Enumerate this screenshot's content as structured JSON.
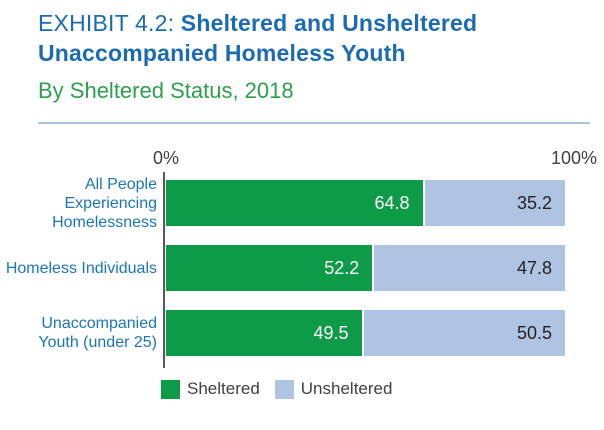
{
  "header": {
    "exhibit": "EXHIBIT 4.2: ",
    "title_line1_bold": "Sheltered and Unsheltered",
    "title_line2_bold": "Unaccompanied Homeless Youth",
    "subtitle": "By Sheltered Status, 2018"
  },
  "axis": {
    "left_label": "0%",
    "right_label": "100%"
  },
  "legend": [
    {
      "label": "Sheltered",
      "color": "#0E9B48"
    },
    {
      "label": "Unsheltered",
      "color": "#AFC3E2"
    }
  ],
  "colors": {
    "title_blue": "#1B6BB4",
    "subtitle_green": "#2CA04D",
    "category_label_blue": "#1C75BC",
    "sheltered_green": "#0E9B48",
    "unsheltered_blue": "#AFC3E2",
    "divider_blue": "#A9C3E0",
    "axis_text": "#414042",
    "value_text_dark": "#231F20",
    "value_text_light": "#FFFFFF"
  },
  "chart_data": {
    "type": "bar",
    "orientation": "horizontal",
    "stacked": true,
    "title": "EXHIBIT 4.2: Sheltered and Unsheltered Unaccompanied Homeless Youth",
    "subtitle": "By Sheltered Status, 2018",
    "categories": [
      "All People Experiencing Homelessness",
      "Homeless Individuals",
      "Unaccompanied Youth (under 25)"
    ],
    "series": [
      {
        "name": "Sheltered",
        "color": "#0E9B48",
        "values": [
          64.8,
          52.2,
          49.5
        ]
      },
      {
        "name": "Unsheltered",
        "color": "#AFC3E2",
        "values": [
          35.2,
          47.8,
          50.5
        ]
      }
    ],
    "xlabel": "",
    "ylabel": "",
    "xlim": [
      0,
      100
    ],
    "x_ticks": [
      "0%",
      "100%"
    ],
    "grid": false,
    "legend_position": "bottom",
    "value_labels": true
  }
}
